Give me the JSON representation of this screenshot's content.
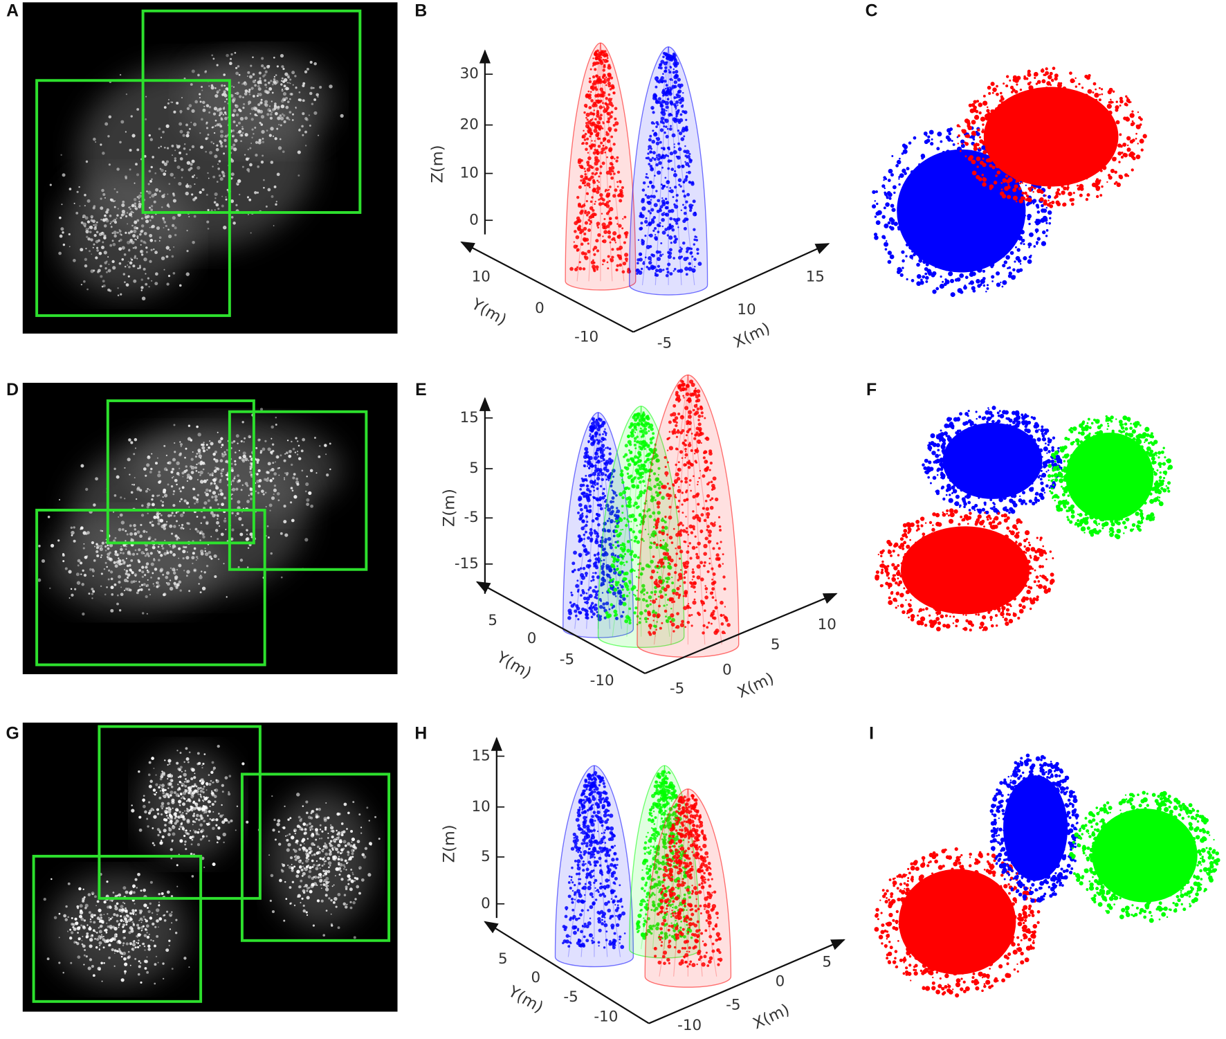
{
  "panels": [
    {
      "label": "A"
    },
    {
      "label": "B",
      "z_title": "Z(m)",
      "z_ticks": [
        "30",
        "20",
        "10",
        "0"
      ],
      "y_title": "Y(m)",
      "y_ticks": [
        "10",
        "0",
        "-10"
      ],
      "x_title": "X(m)",
      "x_ticks": [
        "-5",
        "10",
        "15"
      ]
    },
    {
      "label": "C"
    },
    {
      "label": "D"
    },
    {
      "label": "E",
      "z_title": "Z(m)",
      "z_ticks": [
        "15",
        "5",
        "-5",
        "-15"
      ],
      "y_title": "Y(m)",
      "y_ticks": [
        "5",
        "0",
        "-5",
        "-10"
      ],
      "x_title": "X(m)",
      "x_ticks": [
        "-5",
        "0",
        "5",
        "10"
      ]
    },
    {
      "label": "F"
    },
    {
      "label": "G"
    },
    {
      "label": "H",
      "z_title": "Z(m)",
      "z_ticks": [
        "15",
        "10",
        "5",
        "0"
      ],
      "y_title": "Y(m)",
      "y_ticks": [
        "5",
        "0",
        "-5",
        "-10"
      ],
      "x_title": "X(m)",
      "x_ticks": [
        "-10",
        "-5",
        "0",
        "5"
      ]
    },
    {
      "label": "I"
    }
  ]
}
